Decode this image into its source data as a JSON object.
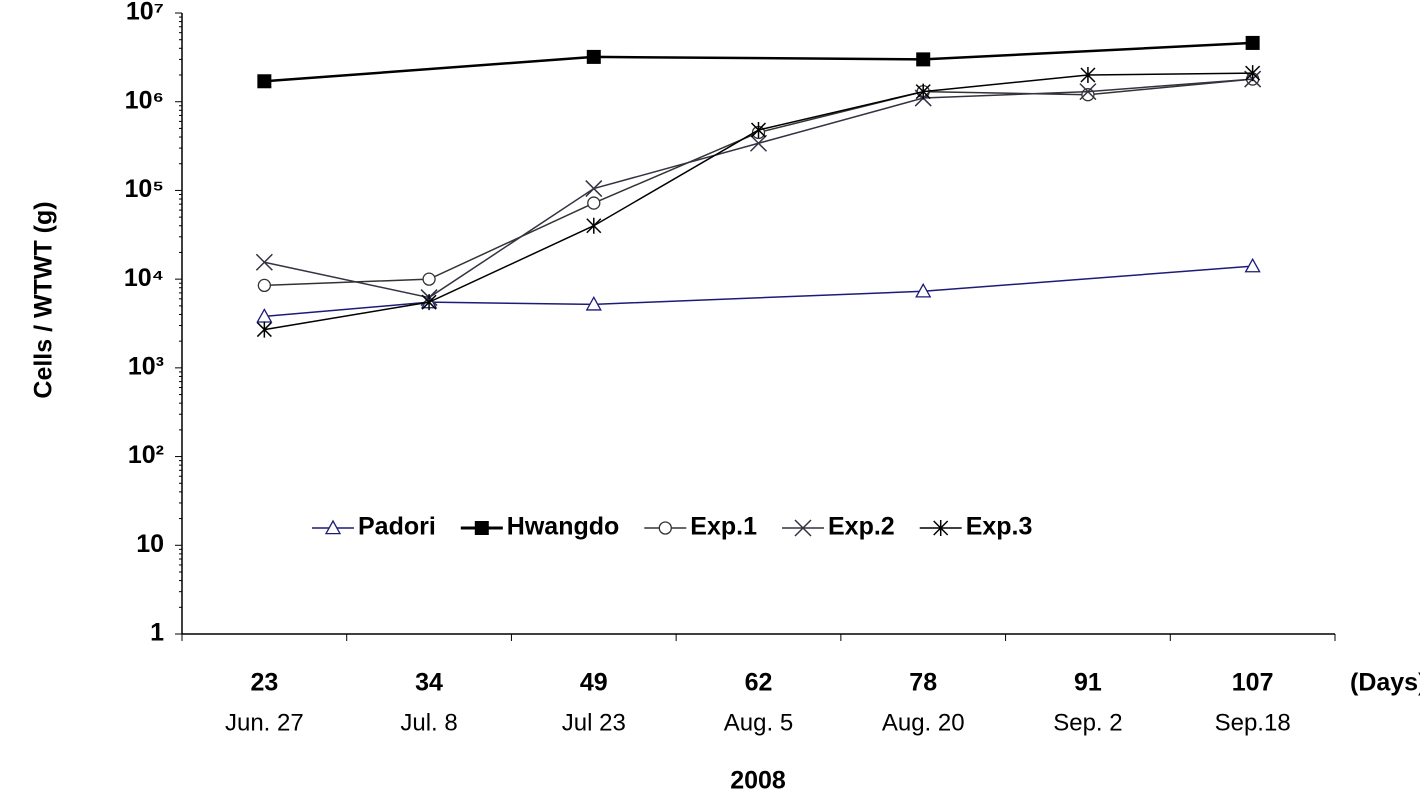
{
  "chart_data": {
    "type": "line",
    "y_label": "Cells / WTWT (g)",
    "x_unit_label": "(Days)",
    "year_label": "2008",
    "categories": [
      "23",
      "34",
      "49",
      "62",
      "78",
      "91",
      "107"
    ],
    "dates": [
      "Jun. 27",
      "Jul. 8",
      "Jul 23",
      "Aug. 5",
      "Aug. 20",
      "Sep. 2",
      "Sep.18"
    ],
    "log_y": true,
    "ylim": [
      1,
      10000000
    ],
    "yticks": [
      1,
      10,
      {
        "value": 100,
        "label": "10²"
      },
      {
        "value": 1000,
        "label": "10³"
      },
      {
        "value": 10000,
        "label": "10⁴"
      },
      {
        "value": 100000,
        "label": "10⁵"
      },
      {
        "value": 1000000,
        "label": "10⁶"
      },
      {
        "value": 10000000,
        "label": "10⁷"
      }
    ],
    "legend": "center",
    "series": [
      {
        "name": "Padori",
        "color": "#1c1c78",
        "marker": "triangle",
        "values": [
          3800,
          5500,
          5200,
          null,
          7300,
          null,
          14000
        ]
      },
      {
        "name": "Hwangdo",
        "color": "#000000",
        "marker": "square",
        "values": [
          1700000,
          null,
          3200000,
          null,
          3000000,
          null,
          4600000
        ]
      },
      {
        "name": "Exp.1",
        "color": "#333333",
        "marker": "circle",
        "values": [
          8500,
          10000,
          72000,
          450000,
          1300000,
          1200000,
          1800000
        ]
      },
      {
        "name": "Exp.2",
        "color": "#333344",
        "marker": "x",
        "values": [
          15500,
          6200,
          105000,
          340000,
          1100000,
          1300000,
          1800000
        ]
      },
      {
        "name": "Exp.3",
        "color": "#000000",
        "marker": "star",
        "values": [
          2700,
          5500,
          40000,
          480000,
          1300000,
          2000000,
          2100000
        ]
      }
    ]
  }
}
